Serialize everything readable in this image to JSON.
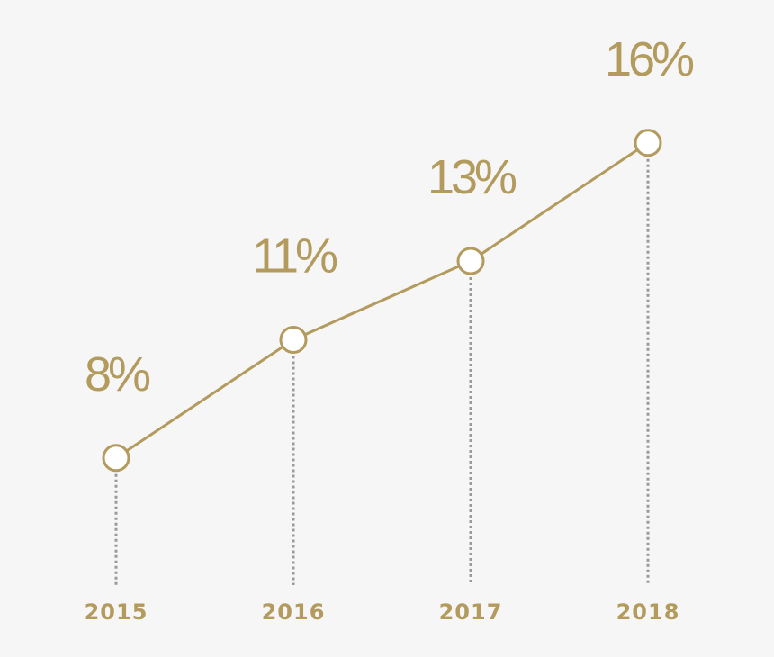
{
  "chart_data": {
    "type": "line",
    "categories": [
      "2015",
      "2016",
      "2017",
      "2018"
    ],
    "values": [
      8,
      11,
      13,
      16
    ],
    "data_labels": [
      "8%",
      "11%",
      "13%",
      "16%"
    ],
    "unit": "%",
    "ylim": [
      5,
      17
    ],
    "grid": false,
    "legend": "none"
  },
  "colors": {
    "background": "#f6f6f6",
    "accent": "#b39a5d",
    "drop_line": "#9a9a9a",
    "marker_fill": "#ffffff"
  }
}
